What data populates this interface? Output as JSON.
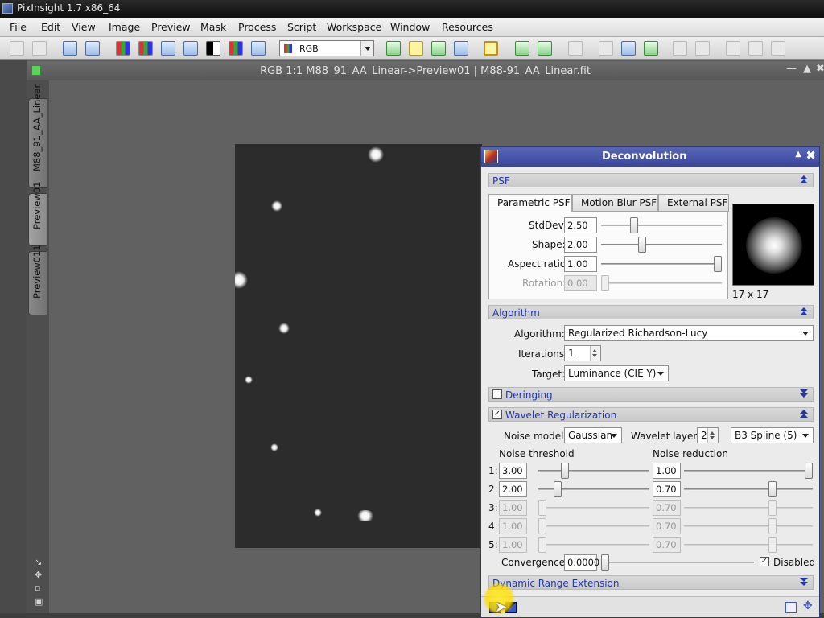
{
  "app": {
    "title": "PixInsight 1.7 x86_64"
  },
  "menu": [
    "File",
    "Edit",
    "View",
    "Image",
    "Preview",
    "Mask",
    "Process",
    "Script",
    "Workspace",
    "Window",
    "Resources"
  ],
  "toolbar": {
    "color_space": "RGB"
  },
  "image_window": {
    "title": "RGB 1:1 M88_91_AA_Linear->Preview01 | M88-91_AA_Linear.fit",
    "tabs": [
      "M88_91_AA_Linear",
      "Preview01",
      "Preview011"
    ]
  },
  "dialog": {
    "title": "Deconvolution",
    "psf": {
      "section": "PSF",
      "tabs": [
        "Parametric PSF",
        "Motion Blur PSF",
        "External PSF"
      ],
      "stddev": {
        "label": "StdDev:",
        "value": "2.50",
        "fraction": 0.26
      },
      "shape": {
        "label": "Shape:",
        "value": "2.00",
        "fraction": 0.33
      },
      "aspect_ratio": {
        "label": "Aspect ratio:",
        "value": "1.00",
        "fraction": 1.0
      },
      "rotation": {
        "label": "Rotation:",
        "value": "0.00",
        "fraction": 0.0
      },
      "preview_size": "17 x 17"
    },
    "algorithm": {
      "section": "Algorithm",
      "algorithm_label": "Algorithm:",
      "algorithm_value": "Regularized Richardson-Lucy",
      "iterations_label": "Iterations:",
      "iterations_value": "1",
      "target_label": "Target:",
      "target_value": "Luminance (CIE Y)"
    },
    "deringing": {
      "section": "Deringing",
      "checked": false
    },
    "wavelet": {
      "section": "Wavelet Regularization",
      "checked": true,
      "noise_model_label": "Noise model:",
      "noise_model_value": "Gaussian",
      "layers_label": "Wavelet layers:",
      "layers_value": "2",
      "scaling_function": "B3 Spline (5)",
      "threshold_header": "Noise threshold",
      "reduction_header": "Noise reduction",
      "rows": [
        {
          "idx": "1:",
          "threshold": "3.00",
          "reduction": "1.00",
          "t_frac": 0.22,
          "r_frac": 1.0,
          "enabled": true
        },
        {
          "idx": "2:",
          "threshold": "2.00",
          "reduction": "0.70",
          "t_frac": 0.15,
          "r_frac": 0.7,
          "enabled": true
        },
        {
          "idx": "3:",
          "threshold": "1.00",
          "reduction": "0.70",
          "t_frac": 0.0,
          "r_frac": 0.7,
          "enabled": false
        },
        {
          "idx": "4:",
          "threshold": "1.00",
          "reduction": "0.70",
          "t_frac": 0.0,
          "r_frac": 0.7,
          "enabled": false
        },
        {
          "idx": "5:",
          "threshold": "1.00",
          "reduction": "0.70",
          "t_frac": 0.0,
          "r_frac": 0.7,
          "enabled": false
        }
      ],
      "convergence_label": "Convergence:",
      "convergence_value": "0.0000",
      "disabled_label": "Disabled",
      "disabled_checked": true
    },
    "dre": {
      "section": "Dynamic Range Extension"
    }
  }
}
